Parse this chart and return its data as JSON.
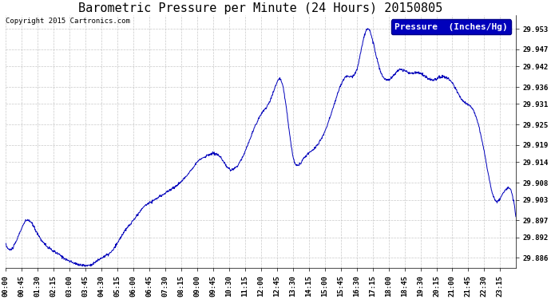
{
  "title": "Barometric Pressure per Minute (24 Hours) 20150805",
  "copyright": "Copyright 2015 Cartronics.com",
  "legend_label": "Pressure  (Inches/Hg)",
  "line_color": "#0000bb",
  "background_color": "#ffffff",
  "grid_color": "#bbbbbb",
  "yticks": [
    29.886,
    29.892,
    29.897,
    29.903,
    29.908,
    29.914,
    29.919,
    29.925,
    29.931,
    29.936,
    29.942,
    29.947,
    29.953
  ],
  "ylim": [
    29.883,
    29.957
  ],
  "xtick_labels": [
    "00:00",
    "00:45",
    "01:30",
    "02:15",
    "03:00",
    "03:45",
    "04:30",
    "05:15",
    "06:00",
    "06:45",
    "07:30",
    "08:15",
    "09:00",
    "09:45",
    "10:30",
    "11:15",
    "12:00",
    "12:45",
    "13:30",
    "14:15",
    "15:00",
    "15:45",
    "16:30",
    "17:15",
    "18:00",
    "18:45",
    "19:30",
    "20:15",
    "21:00",
    "21:45",
    "22:30",
    "23:15"
  ],
  "title_fontsize": 11,
  "tick_fontsize": 6.5,
  "copyright_fontsize": 6.5,
  "legend_fontsize": 8,
  "key_times": [
    0,
    30,
    60,
    90,
    120,
    150,
    180,
    210,
    240,
    270,
    300,
    330,
    360,
    390,
    420,
    450,
    480,
    510,
    540,
    570,
    600,
    630,
    660,
    690,
    720,
    750,
    780,
    810,
    840,
    870,
    900,
    930,
    960,
    990,
    1020,
    1050,
    1080,
    1110,
    1140,
    1170,
    1200,
    1230,
    1260,
    1290,
    1320,
    1350,
    1380,
    1410,
    1439
  ],
  "key_vals": [
    29.89,
    29.891,
    29.897,
    29.893,
    29.889,
    29.887,
    29.885,
    29.884,
    29.884,
    29.886,
    29.888,
    29.893,
    29.897,
    29.901,
    29.903,
    29.905,
    29.907,
    29.91,
    29.914,
    29.916,
    29.916,
    29.912,
    29.914,
    29.921,
    29.928,
    29.933,
    29.937,
    29.916,
    29.915,
    29.918,
    29.923,
    29.932,
    29.939,
    29.941,
    29.953,
    29.943,
    29.938,
    29.941,
    29.94,
    29.94,
    29.938,
    29.939,
    29.937,
    29.932,
    29.929,
    29.917,
    29.903,
    29.906,
    29.898
  ]
}
